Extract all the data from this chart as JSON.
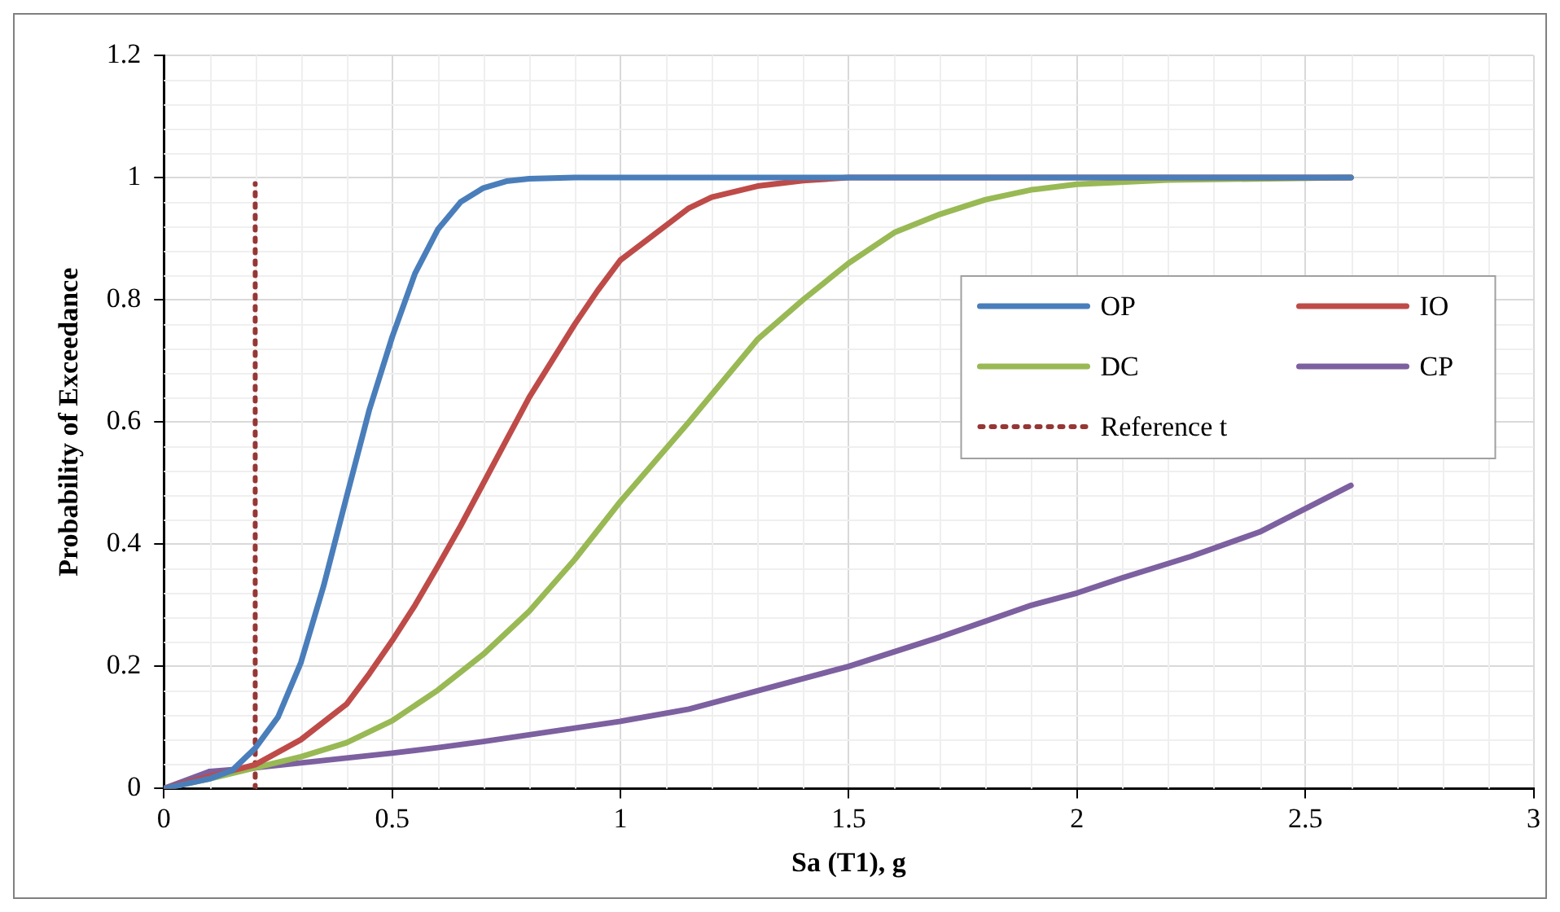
{
  "chart_data": {
    "type": "line",
    "xlabel": "Sa (T1), g",
    "ylabel": "Probability of Exceedance",
    "xlim": [
      0,
      3
    ],
    "xticks": [
      0,
      0.5,
      1,
      1.5,
      2,
      2.5,
      3
    ],
    "ylim": [
      0,
      1.2
    ],
    "yticks": [
      0,
      0.2,
      0.4,
      0.6,
      0.8,
      1,
      1.2
    ],
    "grid": true,
    "legend": "right",
    "marker": "none",
    "line_style": "solid",
    "series": [
      {
        "name": "OP",
        "color": "#4a7ebb",
        "x": [
          0,
          0.1,
          0.15,
          0.2,
          0.25,
          0.3,
          0.35,
          0.4,
          0.45,
          0.5,
          0.55,
          0.6,
          0.65,
          0.7,
          0.75,
          0.8,
          0.9,
          1,
          1.5,
          2,
          2.6
        ],
        "values": [
          0,
          0.016,
          0.03,
          0.066,
          0.117,
          0.206,
          0.332,
          0.477,
          0.62,
          0.739,
          0.843,
          0.915,
          0.96,
          0.983,
          0.994,
          0.998,
          1,
          1,
          1,
          1,
          1
        ]
      },
      {
        "name": "IO",
        "color": "#be4b48",
        "x": [
          0,
          0.1,
          0.2,
          0.3,
          0.4,
          0.45,
          0.5,
          0.55,
          0.6,
          0.65,
          0.7,
          0.75,
          0.8,
          0.85,
          0.9,
          0.95,
          1,
          1.15,
          1.2,
          1.3,
          1.4,
          1.5,
          2.6
        ],
        "values": [
          0,
          0.02,
          0.039,
          0.08,
          0.138,
          0.188,
          0.242,
          0.3,
          0.364,
          0.43,
          0.5,
          0.57,
          0.64,
          0.7,
          0.76,
          0.815,
          0.865,
          0.95,
          0.968,
          0.986,
          0.995,
          1,
          1
        ]
      },
      {
        "name": "DC",
        "color": "#98b954",
        "x": [
          0,
          0.1,
          0.2,
          0.3,
          0.4,
          0.5,
          0.6,
          0.7,
          0.8,
          0.9,
          1,
          1.15,
          1.3,
          1.4,
          1.5,
          1.6,
          1.7,
          1.8,
          1.9,
          2,
          2.2,
          2.6
        ],
        "values": [
          0,
          0.016,
          0.034,
          0.052,
          0.075,
          0.111,
          0.161,
          0.22,
          0.29,
          0.375,
          0.47,
          0.6,
          0.735,
          0.8,
          0.86,
          0.91,
          0.94,
          0.964,
          0.98,
          0.989,
          0.996,
          1
        ]
      },
      {
        "name": "CP",
        "color": "#7d60a0",
        "x": [
          0,
          0.1,
          0.2,
          0.3,
          0.4,
          0.5,
          0.6,
          0.7,
          0.8,
          0.9,
          1,
          1.15,
          1.3,
          1.5,
          1.7,
          1.9,
          2,
          2.1,
          2.25,
          2.4,
          2.6
        ],
        "values": [
          0,
          0.028,
          0.034,
          0.042,
          0.05,
          0.058,
          0.067,
          0.077,
          0.088,
          0.099,
          0.11,
          0.13,
          0.16,
          0.2,
          0.248,
          0.3,
          0.32,
          0.345,
          0.38,
          0.42,
          0.496
        ]
      },
      {
        "name": "Reference t",
        "color": "#953735",
        "line_style": "dotted",
        "x": [
          0.2,
          0.2
        ],
        "values": [
          0,
          0.99
        ]
      }
    ]
  }
}
